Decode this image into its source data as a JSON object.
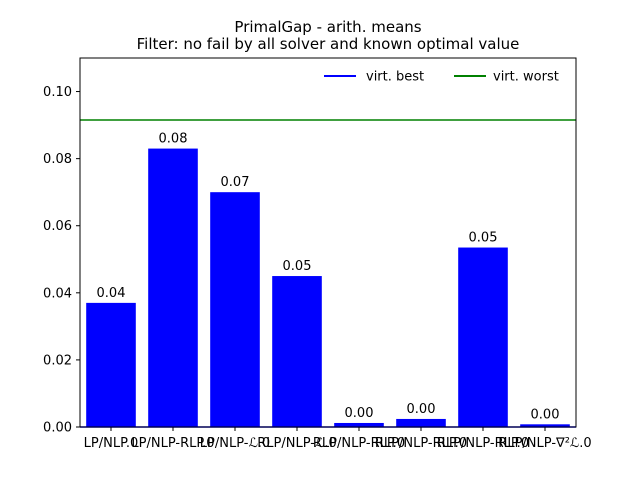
{
  "chart_data": {
    "type": "bar",
    "title_line1": "PrimalGap - arith. means",
    "title_line2": "Filter: no fail by all solver and known optimal value",
    "xlabel": "",
    "ylabel": "",
    "categories": [
      "LP/NLP.0",
      "LP/NLP-RLP.0",
      "LP/NLP-ℒ.0",
      "RLP/NLP-ℒ.0",
      "RLP/NLP-RLP.0",
      "RLP/NLP-RLP.0",
      "RLP/NLP-RLP.0",
      "RLP/NLP-∇²ℒ.0"
    ],
    "values": [
      0.037,
      0.083,
      0.07,
      0.045,
      0.0012,
      0.0024,
      0.0535,
      0.0008
    ],
    "value_labels": [
      "0.04",
      "0.08",
      "0.07",
      "0.05",
      "0.00",
      "0.00",
      "0.05",
      "0.00"
    ],
    "ylim": [
      0,
      0.11
    ],
    "yticks": [
      0.0,
      0.02,
      0.04,
      0.06,
      0.08,
      0.1
    ],
    "ytick_labels": [
      "0.00",
      "0.02",
      "0.04",
      "0.06",
      "0.08",
      "0.10"
    ],
    "bar_color": "#0000ff",
    "grid": false,
    "legend_position": "top-right",
    "reference_lines": [
      {
        "name": "virt. best",
        "value": 0.0,
        "color": "#0000ff"
      },
      {
        "name": "virt. worst",
        "value": 0.0915,
        "color": "#008000"
      }
    ]
  }
}
